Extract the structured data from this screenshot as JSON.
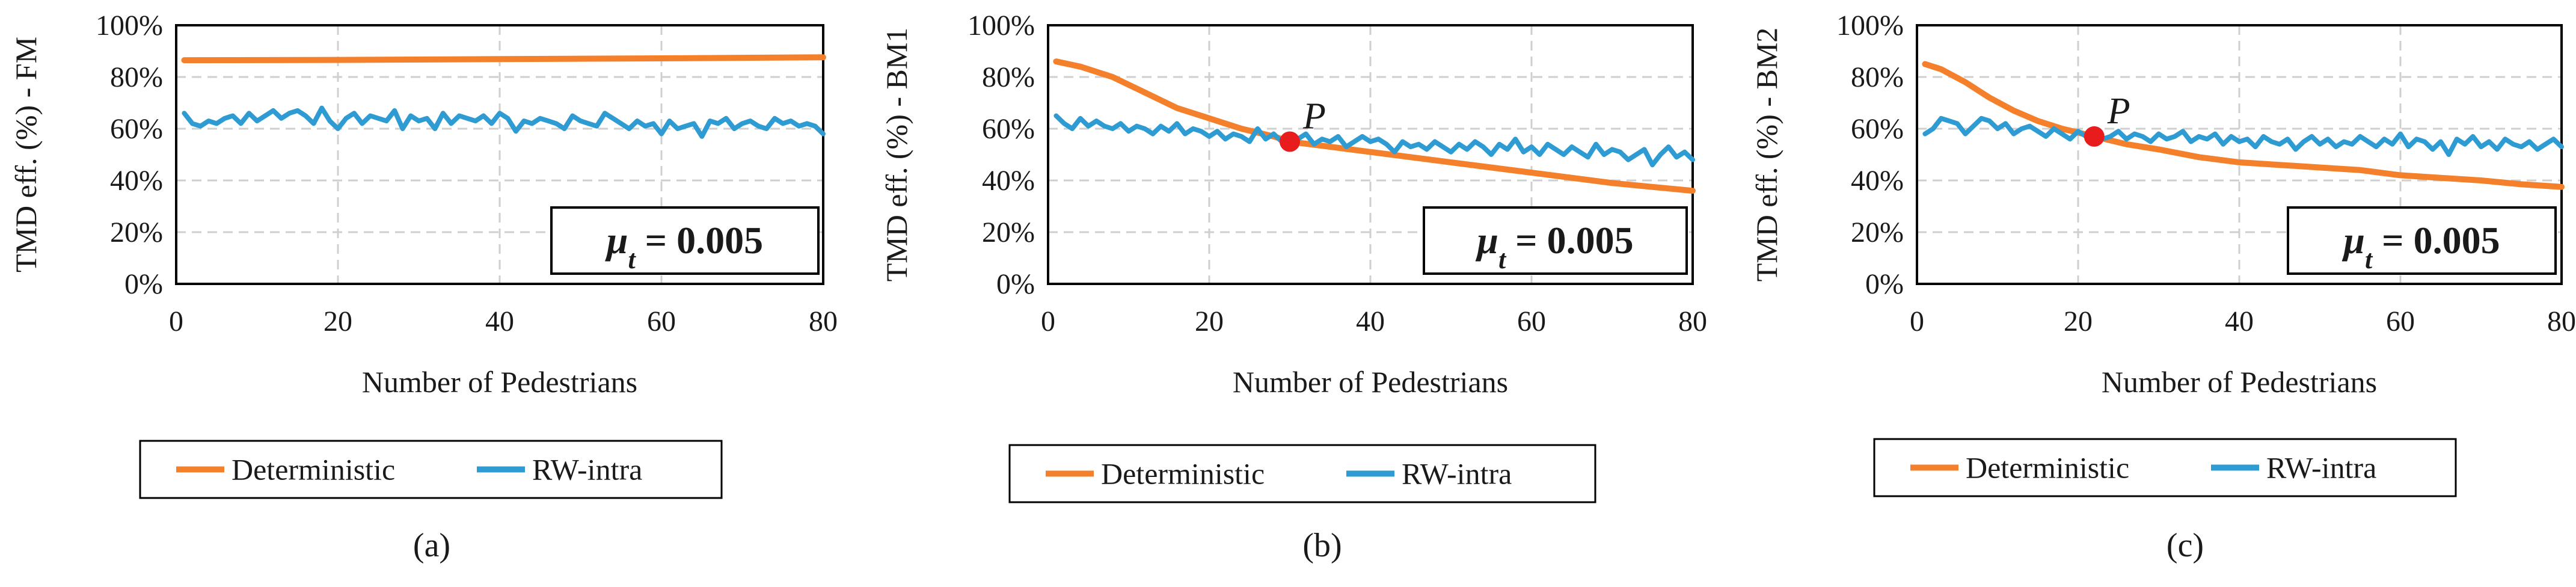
{
  "colors": {
    "deterministic": "#F4802C",
    "rw_intra": "#2E9CD3",
    "point": "#E81C1C",
    "grid": "#cfcfcf"
  },
  "chart_data": [
    {
      "type": "line",
      "panel_label": "(a)",
      "ylabel": "TMD eff. (%) - FM",
      "xlabel": "Number of Pedestrians",
      "xlim": [
        0,
        80
      ],
      "ylim": [
        0,
        100
      ],
      "x_ticks": [
        "0",
        "20",
        "40",
        "60",
        "80"
      ],
      "y_ticks": [
        "0%",
        "20%",
        "40%",
        "60%",
        "80%",
        "100%"
      ],
      "annotation": "μt = 0.005",
      "point": null,
      "legend": [
        "Deterministic",
        "RW-intra"
      ],
      "series": [
        {
          "name": "Deterministic",
          "x": [
            1,
            20,
            40,
            60,
            80
          ],
          "values": [
            86.5,
            86.6,
            86.9,
            87.2,
            87.6
          ]
        },
        {
          "name": "RW-intra",
          "x": [
            1,
            2,
            3,
            4,
            5,
            6,
            7,
            8,
            9,
            10,
            11,
            12,
            13,
            14,
            15,
            16,
            17,
            18,
            19,
            20,
            21,
            22,
            23,
            24,
            25,
            26,
            27,
            28,
            29,
            30,
            31,
            32,
            33,
            34,
            35,
            36,
            37,
            38,
            39,
            40,
            41,
            42,
            43,
            44,
            45,
            46,
            47,
            48,
            49,
            50,
            51,
            52,
            53,
            54,
            55,
            56,
            57,
            58,
            59,
            60,
            61,
            62,
            63,
            64,
            65,
            66,
            67,
            68,
            69,
            70,
            71,
            72,
            73,
            74,
            75,
            76,
            77,
            78,
            79,
            80
          ],
          "values": [
            66,
            62,
            61,
            63,
            62,
            64,
            65,
            62,
            66,
            63,
            65,
            67,
            64,
            66,
            67,
            65,
            62,
            68,
            63,
            60,
            64,
            66,
            62,
            65,
            64,
            63,
            67,
            60,
            65,
            63,
            64,
            60,
            66,
            62,
            65,
            64,
            63,
            65,
            62,
            66,
            64,
            59,
            63,
            62,
            64,
            63,
            62,
            60,
            65,
            63,
            62,
            61,
            66,
            64,
            62,
            60,
            63,
            61,
            62,
            58,
            63,
            60,
            61,
            62,
            57,
            63,
            62,
            64,
            60,
            62,
            63,
            61,
            60,
            64,
            62,
            63,
            61,
            62,
            61,
            58
          ]
        }
      ]
    },
    {
      "type": "line",
      "panel_label": "(b)",
      "ylabel": "TMD eff. (%) - BM1",
      "xlabel": "Number of Pedestrians",
      "xlim": [
        0,
        80
      ],
      "ylim": [
        0,
        100
      ],
      "x_ticks": [
        "0",
        "20",
        "40",
        "60",
        "80"
      ],
      "y_ticks": [
        "0%",
        "20%",
        "40%",
        "60%",
        "80%",
        "100%"
      ],
      "annotation": "μt = 0.005",
      "point": {
        "label": "P",
        "x": 30,
        "y": 55
      },
      "legend": [
        "Deterministic",
        "RW-intra"
      ],
      "series": [
        {
          "name": "Deterministic",
          "x": [
            1,
            4,
            8,
            12,
            16,
            20,
            24,
            28,
            30,
            35,
            40,
            45,
            50,
            55,
            60,
            65,
            70,
            75,
            80
          ],
          "values": [
            86,
            84,
            80,
            74,
            68,
            64,
            60,
            57,
            55,
            53,
            51,
            49,
            47,
            45,
            43,
            41,
            39,
            37.5,
            36
          ]
        },
        {
          "name": "RW-intra",
          "x": [
            1,
            2,
            3,
            4,
            5,
            6,
            7,
            8,
            9,
            10,
            11,
            12,
            13,
            14,
            15,
            16,
            17,
            18,
            19,
            20,
            21,
            22,
            23,
            24,
            25,
            26,
            27,
            28,
            29,
            30,
            31,
            32,
            33,
            34,
            35,
            36,
            37,
            38,
            39,
            40,
            41,
            42,
            43,
            44,
            45,
            46,
            47,
            48,
            49,
            50,
            51,
            52,
            53,
            54,
            55,
            56,
            57,
            58,
            59,
            60,
            61,
            62,
            63,
            64,
            65,
            66,
            67,
            68,
            69,
            70,
            71,
            72,
            73,
            74,
            75,
            76,
            77,
            78,
            79,
            80
          ],
          "values": [
            65,
            62,
            60,
            64,
            61,
            63,
            61,
            60,
            62,
            59,
            61,
            60,
            58,
            61,
            59,
            62,
            58,
            60,
            59,
            57,
            59,
            56,
            58,
            57,
            55,
            60,
            56,
            58,
            55,
            57,
            56,
            58,
            54,
            56,
            55,
            57,
            53,
            55,
            57,
            55,
            56,
            54,
            51,
            55,
            53,
            54,
            52,
            55,
            53,
            51,
            54,
            52,
            55,
            53,
            50,
            54,
            52,
            56,
            51,
            53,
            50,
            54,
            52,
            50,
            53,
            51,
            49,
            54,
            50,
            52,
            51,
            48,
            50,
            52,
            46,
            50,
            53,
            49,
            51,
            48
          ]
        }
      ]
    },
    {
      "type": "line",
      "panel_label": "(c)",
      "ylabel": "TMD eff. (%) - BM2",
      "xlabel": "Number of Pedestrians",
      "xlim": [
        0,
        80
      ],
      "ylim": [
        0,
        100
      ],
      "x_ticks": [
        "0",
        "20",
        "40",
        "60",
        "80"
      ],
      "y_ticks": [
        "0%",
        "20%",
        "40%",
        "60%",
        "80%",
        "100%"
      ],
      "annotation": "μt = 0.005",
      "point": {
        "label": "P",
        "x": 22,
        "y": 57
      },
      "legend": [
        "Deterministic",
        "RW-intra"
      ],
      "series": [
        {
          "name": "Deterministic",
          "x": [
            1,
            3,
            6,
            9,
            12,
            15,
            18,
            22,
            26,
            30,
            35,
            40,
            45,
            50,
            55,
            60,
            65,
            70,
            75,
            80
          ],
          "values": [
            85,
            83,
            78,
            72,
            67,
            63,
            60,
            57,
            54,
            52,
            49,
            47,
            46,
            45,
            44,
            42,
            41,
            40,
            38.5,
            37.5
          ]
        },
        {
          "name": "RW-intra",
          "x": [
            1,
            2,
            3,
            4,
            5,
            6,
            7,
            8,
            9,
            10,
            11,
            12,
            13,
            14,
            15,
            16,
            17,
            18,
            19,
            20,
            21,
            22,
            23,
            24,
            25,
            26,
            27,
            28,
            29,
            30,
            31,
            32,
            33,
            34,
            35,
            36,
            37,
            38,
            39,
            40,
            41,
            42,
            43,
            44,
            45,
            46,
            47,
            48,
            49,
            50,
            51,
            52,
            53,
            54,
            55,
            56,
            57,
            58,
            59,
            60,
            61,
            62,
            63,
            64,
            65,
            66,
            67,
            68,
            69,
            70,
            71,
            72,
            73,
            74,
            75,
            76,
            77,
            78,
            79,
            80
          ],
          "values": [
            58,
            60,
            64,
            63,
            62,
            58,
            61,
            64,
            63,
            60,
            62,
            58,
            60,
            61,
            59,
            57,
            60,
            58,
            56,
            59,
            57,
            58,
            56,
            57,
            59,
            56,
            58,
            57,
            55,
            58,
            56,
            57,
            59,
            55,
            57,
            56,
            58,
            54,
            57,
            55,
            56,
            53,
            57,
            55,
            54,
            56,
            52,
            55,
            57,
            54,
            56,
            53,
            55,
            54,
            57,
            55,
            53,
            56,
            54,
            58,
            53,
            56,
            55,
            52,
            55,
            50,
            56,
            54,
            57,
            53,
            55,
            52,
            56,
            54,
            53,
            55,
            52,
            54,
            56,
            53
          ]
        }
      ]
    }
  ]
}
